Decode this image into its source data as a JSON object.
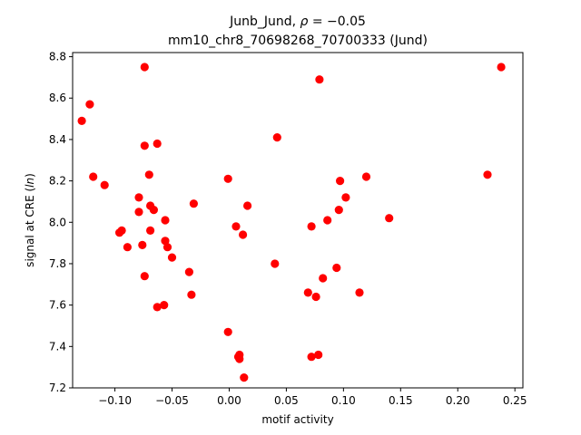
{
  "chart_data": {
    "type": "scatter",
    "title_line1_prefix": "Junb_Jund, ",
    "title_line1_math": "ρ",
    "title_line1_suffix": " = −0.05",
    "title_line2": "mm10_chr8_70698268_70700333 (Jund)",
    "xlabel": "motif activity",
    "ylabel_prefix": "signal at CRE (",
    "ylabel_math": "ln",
    "ylabel_suffix": ")",
    "xlim": [
      -0.137,
      0.257
    ],
    "ylim": [
      7.2,
      8.82
    ],
    "xticks": [
      -0.1,
      -0.05,
      0.0,
      0.05,
      0.1,
      0.15,
      0.2,
      0.25
    ],
    "xtick_labels": [
      "−0.10",
      "−0.05",
      "0.00",
      "0.05",
      "0.10",
      "0.15",
      "0.20",
      "0.25"
    ],
    "yticks": [
      7.2,
      7.4,
      7.6,
      7.8,
      8.0,
      8.2,
      8.4,
      8.6,
      8.8
    ],
    "ytick_labels": [
      "7.2",
      "7.4",
      "7.6",
      "7.8",
      "8.0",
      "8.2",
      "8.4",
      "8.6",
      "8.8"
    ],
    "grid": false,
    "marker_color": "#ff0000",
    "points": [
      {
        "x": -0.129,
        "y": 8.49
      },
      {
        "x": -0.122,
        "y": 8.57
      },
      {
        "x": -0.119,
        "y": 8.22
      },
      {
        "x": -0.109,
        "y": 8.18
      },
      {
        "x": -0.096,
        "y": 7.95
      },
      {
        "x": -0.094,
        "y": 7.96
      },
      {
        "x": -0.089,
        "y": 7.88
      },
      {
        "x": -0.079,
        "y": 8.12
      },
      {
        "x": -0.079,
        "y": 8.05
      },
      {
        "x": -0.076,
        "y": 7.89
      },
      {
        "x": -0.074,
        "y": 8.75
      },
      {
        "x": -0.074,
        "y": 8.37
      },
      {
        "x": -0.074,
        "y": 7.74
      },
      {
        "x": -0.07,
        "y": 8.23
      },
      {
        "x": -0.069,
        "y": 8.08
      },
      {
        "x": -0.069,
        "y": 7.96
      },
      {
        "x": -0.066,
        "y": 8.06
      },
      {
        "x": -0.063,
        "y": 8.38
      },
      {
        "x": -0.063,
        "y": 7.59
      },
      {
        "x": -0.057,
        "y": 7.6
      },
      {
        "x": -0.056,
        "y": 8.01
      },
      {
        "x": -0.056,
        "y": 7.91
      },
      {
        "x": -0.054,
        "y": 7.88
      },
      {
        "x": -0.05,
        "y": 7.83
      },
      {
        "x": -0.035,
        "y": 7.76
      },
      {
        "x": -0.033,
        "y": 7.65
      },
      {
        "x": -0.031,
        "y": 8.09
      },
      {
        "x": -0.001,
        "y": 8.21
      },
      {
        "x": -0.001,
        "y": 7.47
      },
      {
        "x": 0.006,
        "y": 7.98
      },
      {
        "x": 0.008,
        "y": 7.35
      },
      {
        "x": 0.009,
        "y": 7.36
      },
      {
        "x": 0.009,
        "y": 7.34
      },
      {
        "x": 0.012,
        "y": 7.94
      },
      {
        "x": 0.013,
        "y": 7.25
      },
      {
        "x": 0.016,
        "y": 8.08
      },
      {
        "x": 0.04,
        "y": 7.8
      },
      {
        "x": 0.042,
        "y": 8.41
      },
      {
        "x": 0.069,
        "y": 7.66
      },
      {
        "x": 0.072,
        "y": 7.98
      },
      {
        "x": 0.072,
        "y": 7.35
      },
      {
        "x": 0.076,
        "y": 7.64
      },
      {
        "x": 0.078,
        "y": 7.36
      },
      {
        "x": 0.079,
        "y": 8.69
      },
      {
        "x": 0.082,
        "y": 7.73
      },
      {
        "x": 0.086,
        "y": 8.01
      },
      {
        "x": 0.094,
        "y": 7.78
      },
      {
        "x": 0.096,
        "y": 8.06
      },
      {
        "x": 0.097,
        "y": 8.2
      },
      {
        "x": 0.102,
        "y": 8.12
      },
      {
        "x": 0.114,
        "y": 7.66
      },
      {
        "x": 0.12,
        "y": 8.22
      },
      {
        "x": 0.14,
        "y": 8.02
      },
      {
        "x": 0.226,
        "y": 8.23
      },
      {
        "x": 0.238,
        "y": 8.75
      }
    ]
  }
}
